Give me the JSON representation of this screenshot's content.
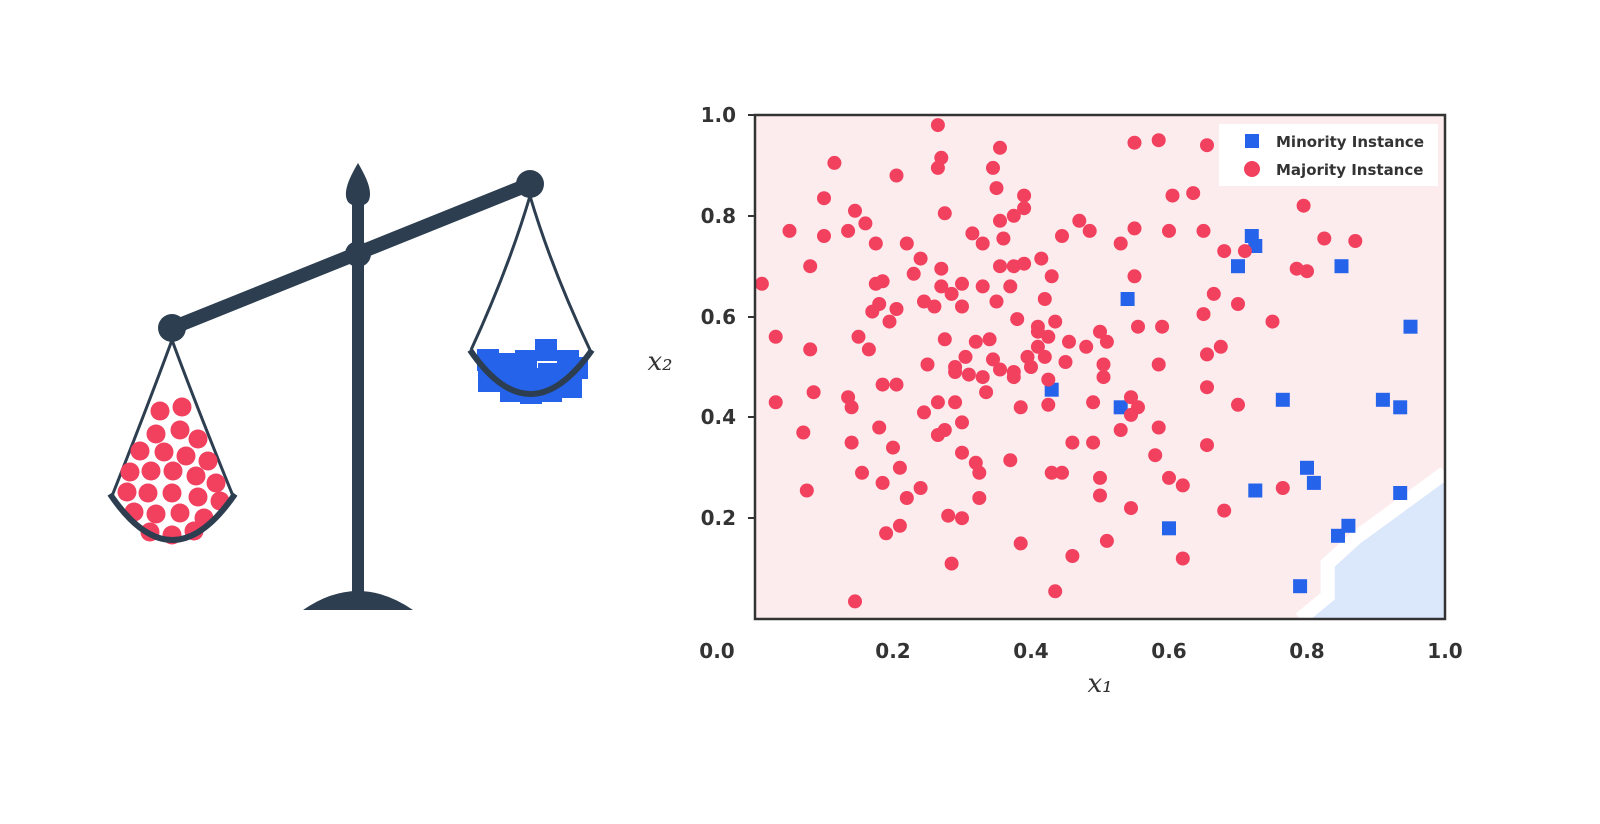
{
  "illustration": {
    "left_pan_item": "circle",
    "right_pan_item": "square"
  },
  "colors": {
    "majority": "#f2405f",
    "minority": "#2563eb",
    "majority_region": "#fdeced",
    "minority_region": "#dbe7fb",
    "ink": "#2c3e50"
  },
  "chart_data": {
    "type": "scatter",
    "title": "",
    "xlabel": "x₁",
    "ylabel": "x₂",
    "xlim": [
      0.0,
      1.0
    ],
    "ylim": [
      0.0,
      1.0
    ],
    "xticks": [
      "0.0",
      "0.2",
      "0.4",
      "0.6",
      "0.8",
      "1.0"
    ],
    "yticks": [
      "0.2",
      "0.4",
      "0.6",
      "0.8",
      "1.0"
    ],
    "grid": false,
    "legend_position": "top-right",
    "decision_region": {
      "boundary": [
        [
          0.79,
          0.0
        ],
        [
          0.83,
          0.045
        ],
        [
          0.83,
          0.11
        ],
        [
          0.87,
          0.16
        ],
        [
          1.0,
          0.29
        ]
      ],
      "minority_side": "bottom-right"
    },
    "series": [
      {
        "name": "Minority Instance",
        "marker": "square",
        "points": [
          [
            0.72,
            0.76
          ],
          [
            0.725,
            0.74
          ],
          [
            0.7,
            0.7
          ],
          [
            0.85,
            0.7
          ],
          [
            0.54,
            0.635
          ],
          [
            0.95,
            0.58
          ],
          [
            0.43,
            0.455
          ],
          [
            0.53,
            0.42
          ],
          [
            0.765,
            0.435
          ],
          [
            0.91,
            0.435
          ],
          [
            0.935,
            0.42
          ],
          [
            0.8,
            0.3
          ],
          [
            0.81,
            0.27
          ],
          [
            0.725,
            0.255
          ],
          [
            0.935,
            0.25
          ],
          [
            0.6,
            0.18
          ],
          [
            0.86,
            0.185
          ],
          [
            0.845,
            0.165
          ],
          [
            0.79,
            0.065
          ]
        ]
      },
      {
        "name": "Majority Instance",
        "marker": "circle",
        "points": [
          [
            0.265,
            0.98
          ],
          [
            0.55,
            0.945
          ],
          [
            0.585,
            0.95
          ],
          [
            0.655,
            0.94
          ],
          [
            0.355,
            0.935
          ],
          [
            0.27,
            0.915
          ],
          [
            0.115,
            0.905
          ],
          [
            0.265,
            0.895
          ],
          [
            0.345,
            0.895
          ],
          [
            0.205,
            0.88
          ],
          [
            0.35,
            0.855
          ],
          [
            0.39,
            0.84
          ],
          [
            0.605,
            0.84
          ],
          [
            0.635,
            0.845
          ],
          [
            0.1,
            0.835
          ],
          [
            0.795,
            0.82
          ],
          [
            0.39,
            0.815
          ],
          [
            0.145,
            0.81
          ],
          [
            0.275,
            0.805
          ],
          [
            0.375,
            0.8
          ],
          [
            0.47,
            0.79
          ],
          [
            0.355,
            0.79
          ],
          [
            0.16,
            0.785
          ],
          [
            0.05,
            0.77
          ],
          [
            0.135,
            0.77
          ],
          [
            0.315,
            0.765
          ],
          [
            0.485,
            0.77
          ],
          [
            0.55,
            0.775
          ],
          [
            0.6,
            0.77
          ],
          [
            0.65,
            0.77
          ],
          [
            0.1,
            0.76
          ],
          [
            0.445,
            0.76
          ],
          [
            0.36,
            0.755
          ],
          [
            0.825,
            0.755
          ],
          [
            0.87,
            0.75
          ],
          [
            0.175,
            0.745
          ],
          [
            0.22,
            0.745
          ],
          [
            0.33,
            0.745
          ],
          [
            0.53,
            0.745
          ],
          [
            0.68,
            0.73
          ],
          [
            0.71,
            0.73
          ],
          [
            0.24,
            0.715
          ],
          [
            0.415,
            0.715
          ],
          [
            0.08,
            0.7
          ],
          [
            0.27,
            0.695
          ],
          [
            0.355,
            0.7
          ],
          [
            0.375,
            0.7
          ],
          [
            0.39,
            0.705
          ],
          [
            0.785,
            0.695
          ],
          [
            0.8,
            0.69
          ],
          [
            0.23,
            0.685
          ],
          [
            0.43,
            0.68
          ],
          [
            0.55,
            0.68
          ],
          [
            0.185,
            0.67
          ],
          [
            0.175,
            0.665
          ],
          [
            0.3,
            0.665
          ],
          [
            0.37,
            0.66
          ],
          [
            0.27,
            0.66
          ],
          [
            0.33,
            0.66
          ],
          [
            0.01,
            0.665
          ],
          [
            0.245,
            0.63
          ],
          [
            0.285,
            0.645
          ],
          [
            0.35,
            0.63
          ],
          [
            0.42,
            0.635
          ],
          [
            0.665,
            0.645
          ],
          [
            0.18,
            0.625
          ],
          [
            0.205,
            0.615
          ],
          [
            0.26,
            0.62
          ],
          [
            0.3,
            0.62
          ],
          [
            0.41,
            0.58
          ],
          [
            0.59,
            0.58
          ],
          [
            0.7,
            0.625
          ],
          [
            0.17,
            0.61
          ],
          [
            0.195,
            0.59
          ],
          [
            0.435,
            0.59
          ],
          [
            0.455,
            0.55
          ],
          [
            0.65,
            0.605
          ],
          [
            0.75,
            0.59
          ],
          [
            0.38,
            0.595
          ],
          [
            0.41,
            0.57
          ],
          [
            0.5,
            0.57
          ],
          [
            0.555,
            0.58
          ],
          [
            0.03,
            0.56
          ],
          [
            0.15,
            0.56
          ],
          [
            0.275,
            0.555
          ],
          [
            0.32,
            0.55
          ],
          [
            0.34,
            0.555
          ],
          [
            0.425,
            0.56
          ],
          [
            0.48,
            0.54
          ],
          [
            0.51,
            0.55
          ],
          [
            0.675,
            0.54
          ],
          [
            0.08,
            0.535
          ],
          [
            0.165,
            0.535
          ],
          [
            0.305,
            0.52
          ],
          [
            0.395,
            0.52
          ],
          [
            0.42,
            0.52
          ],
          [
            0.41,
            0.54
          ],
          [
            0.655,
            0.525
          ],
          [
            0.345,
            0.515
          ],
          [
            0.4,
            0.5
          ],
          [
            0.29,
            0.5
          ],
          [
            0.25,
            0.505
          ],
          [
            0.45,
            0.51
          ],
          [
            0.505,
            0.505
          ],
          [
            0.585,
            0.505
          ],
          [
            0.29,
            0.49
          ],
          [
            0.355,
            0.495
          ],
          [
            0.375,
            0.49
          ],
          [
            0.31,
            0.485
          ],
          [
            0.33,
            0.48
          ],
          [
            0.375,
            0.48
          ],
          [
            0.425,
            0.475
          ],
          [
            0.505,
            0.48
          ],
          [
            0.185,
            0.465
          ],
          [
            0.205,
            0.465
          ],
          [
            0.085,
            0.45
          ],
          [
            0.335,
            0.45
          ],
          [
            0.655,
            0.46
          ],
          [
            0.135,
            0.44
          ],
          [
            0.545,
            0.44
          ],
          [
            0.03,
            0.43
          ],
          [
            0.265,
            0.43
          ],
          [
            0.29,
            0.43
          ],
          [
            0.385,
            0.42
          ],
          [
            0.425,
            0.425
          ],
          [
            0.49,
            0.43
          ],
          [
            0.555,
            0.42
          ],
          [
            0.7,
            0.425
          ],
          [
            0.14,
            0.42
          ],
          [
            0.245,
            0.41
          ],
          [
            0.545,
            0.405
          ],
          [
            0.3,
            0.39
          ],
          [
            0.265,
            0.365
          ],
          [
            0.275,
            0.375
          ],
          [
            0.07,
            0.37
          ],
          [
            0.18,
            0.38
          ],
          [
            0.53,
            0.375
          ],
          [
            0.585,
            0.38
          ],
          [
            0.14,
            0.35
          ],
          [
            0.46,
            0.35
          ],
          [
            0.49,
            0.35
          ],
          [
            0.655,
            0.345
          ],
          [
            0.2,
            0.34
          ],
          [
            0.3,
            0.33
          ],
          [
            0.58,
            0.325
          ],
          [
            0.32,
            0.31
          ],
          [
            0.37,
            0.315
          ],
          [
            0.21,
            0.3
          ],
          [
            0.155,
            0.29
          ],
          [
            0.325,
            0.29
          ],
          [
            0.43,
            0.29
          ],
          [
            0.445,
            0.29
          ],
          [
            0.5,
            0.28
          ],
          [
            0.6,
            0.28
          ],
          [
            0.765,
            0.26
          ],
          [
            0.185,
            0.27
          ],
          [
            0.62,
            0.265
          ],
          [
            0.075,
            0.255
          ],
          [
            0.24,
            0.26
          ],
          [
            0.22,
            0.24
          ],
          [
            0.325,
            0.24
          ],
          [
            0.5,
            0.245
          ],
          [
            0.68,
            0.215
          ],
          [
            0.28,
            0.205
          ],
          [
            0.3,
            0.2
          ],
          [
            0.545,
            0.22
          ],
          [
            0.21,
            0.185
          ],
          [
            0.19,
            0.17
          ],
          [
            0.385,
            0.15
          ],
          [
            0.51,
            0.155
          ],
          [
            0.46,
            0.125
          ],
          [
            0.62,
            0.12
          ],
          [
            0.285,
            0.11
          ],
          [
            0.435,
            0.055
          ],
          [
            0.145,
            0.035
          ]
        ]
      }
    ]
  }
}
